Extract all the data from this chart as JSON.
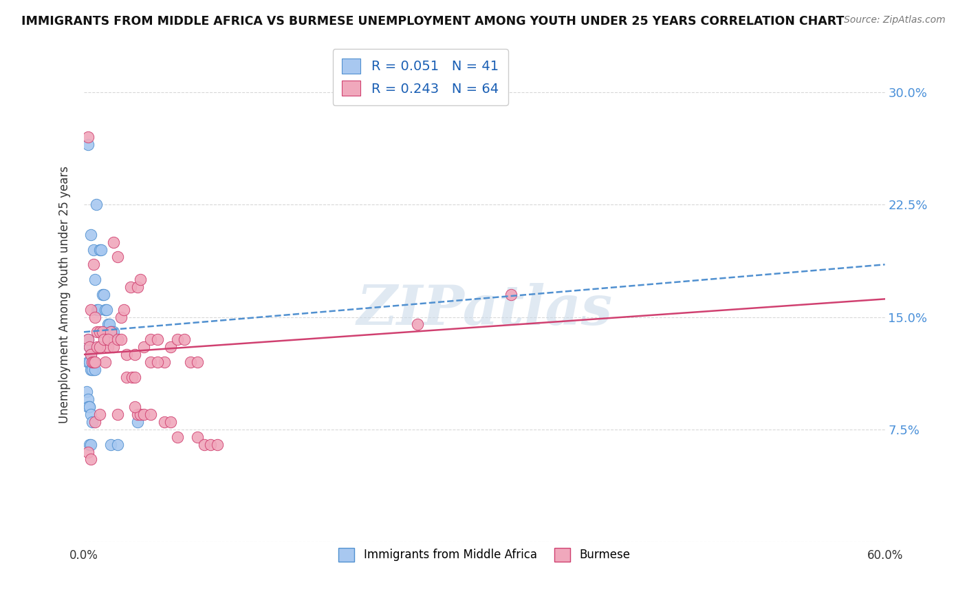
{
  "title": "IMMIGRANTS FROM MIDDLE AFRICA VS BURMESE UNEMPLOYMENT AMONG YOUTH UNDER 25 YEARS CORRELATION CHART",
  "source": "Source: ZipAtlas.com",
  "ylabel": "Unemployment Among Youth under 25 years",
  "yticks": [
    0.0,
    0.075,
    0.15,
    0.225,
    0.3
  ],
  "ytick_labels": [
    "",
    "7.5%",
    "15.0%",
    "22.5%",
    "30.0%"
  ],
  "xlim": [
    0.0,
    0.6
  ],
  "ylim": [
    0.0,
    0.33
  ],
  "legend_label1": "Immigrants from Middle Africa",
  "legend_label2": "Burmese",
  "color_blue": "#a8c8f0",
  "color_pink": "#f0a8bc",
  "trendline_blue_color": "#5090d0",
  "trendline_pink_color": "#d04070",
  "trendline_blue_start": 0.14,
  "trendline_blue_end": 0.185,
  "trendline_pink_start": 0.125,
  "trendline_pink_end": 0.162,
  "blue_points_x": [
    0.003,
    0.005,
    0.007,
    0.008,
    0.009,
    0.01,
    0.011,
    0.012,
    0.013,
    0.014,
    0.015,
    0.016,
    0.017,
    0.018,
    0.019,
    0.02,
    0.021,
    0.022,
    0.003,
    0.004,
    0.005,
    0.006,
    0.007,
    0.003,
    0.004,
    0.005,
    0.006,
    0.007,
    0.008,
    0.002,
    0.003,
    0.004,
    0.02,
    0.025,
    0.004,
    0.005,
    0.003,
    0.004,
    0.005,
    0.006,
    0.04
  ],
  "blue_points_y": [
    0.265,
    0.205,
    0.195,
    0.175,
    0.225,
    0.155,
    0.155,
    0.195,
    0.195,
    0.165,
    0.165,
    0.155,
    0.155,
    0.145,
    0.145,
    0.14,
    0.14,
    0.14,
    0.135,
    0.13,
    0.125,
    0.12,
    0.115,
    0.12,
    0.12,
    0.115,
    0.115,
    0.12,
    0.115,
    0.1,
    0.095,
    0.09,
    0.065,
    0.065,
    0.065,
    0.065,
    0.09,
    0.09,
    0.085,
    0.08,
    0.08
  ],
  "pink_points_x": [
    0.003,
    0.005,
    0.007,
    0.008,
    0.01,
    0.012,
    0.014,
    0.016,
    0.018,
    0.02,
    0.022,
    0.025,
    0.028,
    0.03,
    0.032,
    0.035,
    0.038,
    0.04,
    0.042,
    0.045,
    0.05,
    0.055,
    0.06,
    0.065,
    0.07,
    0.075,
    0.08,
    0.085,
    0.003,
    0.004,
    0.005,
    0.006,
    0.007,
    0.008,
    0.01,
    0.012,
    0.015,
    0.018,
    0.022,
    0.025,
    0.028,
    0.032,
    0.036,
    0.038,
    0.04,
    0.042,
    0.045,
    0.05,
    0.055,
    0.06,
    0.065,
    0.07,
    0.085,
    0.09,
    0.095,
    0.1,
    0.25,
    0.003,
    0.005,
    0.008,
    0.012,
    0.025,
    0.038,
    0.05,
    0.32
  ],
  "pink_points_y": [
    0.27,
    0.155,
    0.185,
    0.15,
    0.14,
    0.14,
    0.14,
    0.12,
    0.13,
    0.14,
    0.2,
    0.19,
    0.15,
    0.155,
    0.125,
    0.17,
    0.125,
    0.17,
    0.175,
    0.13,
    0.135,
    0.135,
    0.12,
    0.13,
    0.135,
    0.135,
    0.12,
    0.12,
    0.135,
    0.13,
    0.125,
    0.12,
    0.12,
    0.12,
    0.13,
    0.13,
    0.135,
    0.135,
    0.13,
    0.135,
    0.135,
    0.11,
    0.11,
    0.11,
    0.085,
    0.085,
    0.085,
    0.12,
    0.12,
    0.08,
    0.08,
    0.07,
    0.07,
    0.065,
    0.065,
    0.065,
    0.145,
    0.06,
    0.055,
    0.08,
    0.085,
    0.085,
    0.09,
    0.085,
    0.165
  ],
  "watermark": "ZIPatlas",
  "background_color": "#ffffff",
  "grid_color": "#d8d8d8"
}
